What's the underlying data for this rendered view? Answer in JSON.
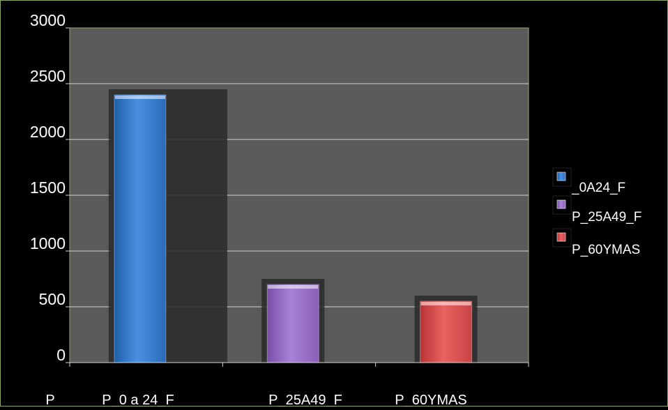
{
  "chart_data": {
    "type": "bar",
    "title": "",
    "xlabel": "",
    "ylabel": "",
    "ylim": [
      0,
      3000
    ],
    "yticks": [
      0,
      500,
      1000,
      1500,
      2000,
      2500,
      3000
    ],
    "ytick_labels": [
      "0",
      "500",
      "1000",
      "1500",
      "2000",
      "2500",
      "3000"
    ],
    "x_tick_labels": [
      "P",
      "P_0 a 24_F",
      "P_25A49_F",
      "P_60YMAS"
    ],
    "grid": true,
    "legend_position": "right",
    "series": [
      {
        "name": "_0A24_F",
        "color": "#3a7fd0",
        "values": [
          2400
        ]
      },
      {
        "name": "P_25A49_F",
        "color": "#9b6fc5",
        "values": [
          700
        ]
      },
      {
        "name": "P_60YMAS",
        "color": "#d94a4a",
        "values": [
          550
        ]
      }
    ],
    "colors": {
      "background": "#000000",
      "plot_area": "#5a5a5a",
      "plot_border": "#8fa86a",
      "gridline": "#d8d8d8",
      "text": "#ffffff"
    }
  }
}
